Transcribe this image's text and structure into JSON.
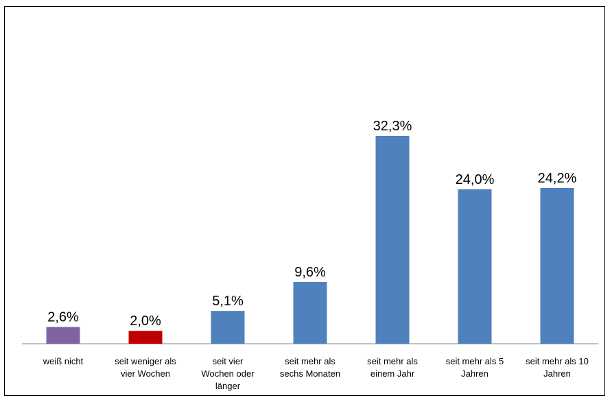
{
  "chart_data": {
    "type": "bar",
    "categories": [
      [
        "weiß nicht"
      ],
      [
        "seit weniger als",
        "vier Wochen"
      ],
      [
        "seit vier",
        "Wochen oder",
        "länger"
      ],
      [
        "seit mehr als",
        "sechs Monaten"
      ],
      [
        "seit mehr als",
        "einem Jahr"
      ],
      [
        "seit mehr als 5",
        "Jahren"
      ],
      [
        "seit mehr als 10",
        "Jahren"
      ]
    ],
    "values": [
      2.6,
      2.0,
      5.1,
      9.6,
      32.3,
      24.0,
      24.2
    ],
    "value_labels": [
      "2,6%",
      "2,0%",
      "5,1%",
      "9,6%",
      "32,3%",
      "24,0%",
      "24,2%"
    ],
    "bar_colors": [
      "#8064A2",
      "#C00000",
      "#4F81BD",
      "#4F81BD",
      "#4F81BD",
      "#4F81BD",
      "#4F81BD"
    ],
    "title": "",
    "xlabel": "",
    "ylabel": "",
    "ylim": [
      0,
      36
    ],
    "grid": false,
    "legend": "none"
  }
}
